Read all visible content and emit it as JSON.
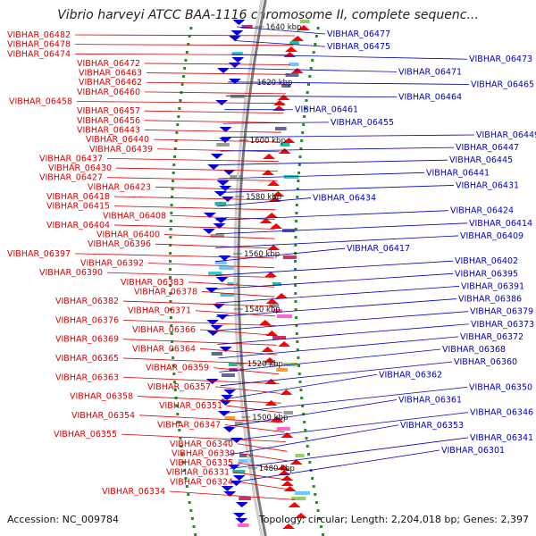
{
  "title": "Vibrio harveyi ATCC BAA-1116 chromosome II, complete sequenc...",
  "footer": {
    "accession": "Accession: NC_009784",
    "summary": "Topology: circular; Length: 2,204,018 bp; Genes: 2,397"
  },
  "colors": {
    "reverse_strand_label": "#dd0000",
    "forward_strand_label": "#0000c0",
    "reverse_feature": "#ff0000",
    "forward_feature": "#0000dd",
    "backbone": "#999999",
    "gc_skew_dots": "#2a8a2a"
  },
  "kbp_ticks": [
    "1640 kbp",
    "1620 kbp",
    "1600 kbp",
    "1580 kbp",
    "1560 kbp",
    "1540 kbp",
    "1520 kbp",
    "1500 kbp",
    "1480 kbp"
  ],
  "left_labels": [
    "VIBHAR_06482",
    "VIBHAR_06478",
    "VIBHAR_06474",
    "VIBHAR_06472",
    "VIBHAR_06463",
    "VIBHAR_06462",
    "VIBHAR_06460",
    "VIBHAR_06458",
    "VIBHAR_06457",
    "VIBHAR_06456",
    "VIBHAR_06443",
    "VIBHAR_06440",
    "VIBHAR_06439",
    "VIBHAR_06437",
    "VIBHAR_06430",
    "VIBHAR_06427",
    "VIBHAR_06423",
    "VIBHAR_06418",
    "VIBHAR_06415",
    "VIBHAR_06408",
    "VIBHAR_06404",
    "VIBHAR_06400",
    "VIBHAR_06396",
    "VIBHAR_06397",
    "VIBHAR_06392",
    "VIBHAR_06390",
    "VIBHAR_06383",
    "VIBHAR_06378",
    "VIBHAR_06382",
    "VIBHAR_06371",
    "VIBHAR_06376",
    "VIBHAR_06366",
    "VIBHAR_06369",
    "VIBHAR_06364",
    "VIBHAR_06365",
    "VIBHAR_06359",
    "VIBHAR_06363",
    "VIBHAR_06357",
    "VIBHAR_06358",
    "VIBHAR_06351",
    "VIBHAR_06354",
    "VIBHAR_06347",
    "VIBHAR_06355",
    "VIBHAR_06340",
    "VIBHAR_06339",
    "VIBHAR_06335",
    "VIBHAR_06331",
    "VIBHAR_06324",
    "VIBHAR_06334"
  ],
  "right_labels": [
    "VIBHAR_06477",
    "VIBHAR_06475",
    "VIBHAR_06473",
    "VIBHAR_06471",
    "VIBHAR_06465",
    "VIBHAR_06464",
    "VIBHAR_06461",
    "VIBHAR_06455",
    "VIBHAR_06449",
    "VIBHAR_06447",
    "VIBHAR_06445",
    "VIBHAR_06441",
    "VIBHAR_06431",
    "VIBHAR_06434",
    "VIBHAR_06424",
    "VIBHAR_06414",
    "VIBHAR_06409",
    "VIBHAR_06417",
    "VIBHAR_06402",
    "VIBHAR_06395",
    "VIBHAR_06391",
    "VIBHAR_06386",
    "VIBHAR_06379",
    "VIBHAR_06373",
    "VIBHAR_06372",
    "VIBHAR_06368",
    "VIBHAR_06360",
    "VIBHAR_06362",
    "VIBHAR_06350",
    "VIBHAR_06361",
    "VIBHAR_06346",
    "VIBHAR_06353",
    "VIBHAR_06341",
    "VIBHAR_06301"
  ]
}
